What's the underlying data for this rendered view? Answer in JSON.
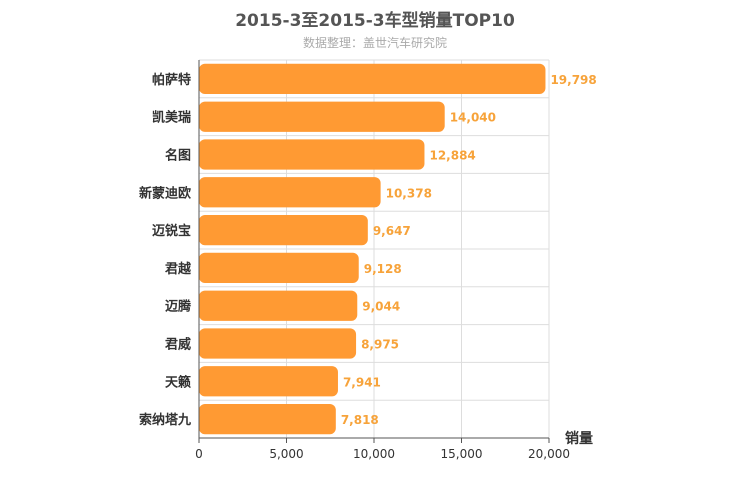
{
  "title": "2015-3至2015-3车型销量TOP10",
  "subtitle": "数据整理：盖世汽车研究院",
  "colors": {
    "bar": "#ff9a33",
    "value_label": "#f7a33a",
    "grid": "#dddddd",
    "axis": "#555555"
  },
  "chart_data": {
    "type": "bar",
    "orientation": "horizontal",
    "title": "2015-3至2015-3车型销量TOP10",
    "subtitle": "数据整理：盖世汽车研究院",
    "categories": [
      "帕萨特",
      "凯美瑞",
      "名图",
      "新蒙迪欧",
      "迈锐宝",
      "君越",
      "迈腾",
      "君威",
      "天籁",
      "索纳塔九"
    ],
    "values": [
      19798,
      14040,
      12884,
      10378,
      9647,
      9128,
      9044,
      8975,
      7941,
      7818
    ],
    "value_labels": [
      "19,798",
      "14,040",
      "12,884",
      "10,378",
      "9,647",
      "9,128",
      "9,044",
      "8,975",
      "7,941",
      "7,818"
    ],
    "xlabel": "销量",
    "ylabel": "",
    "xlim": [
      0,
      20000
    ],
    "x_ticks": [
      0,
      5000,
      10000,
      15000,
      20000
    ],
    "x_tick_labels": [
      "0",
      "5,000",
      "10,000",
      "15,000",
      "20,000"
    ],
    "grid": true,
    "legend": "none"
  }
}
